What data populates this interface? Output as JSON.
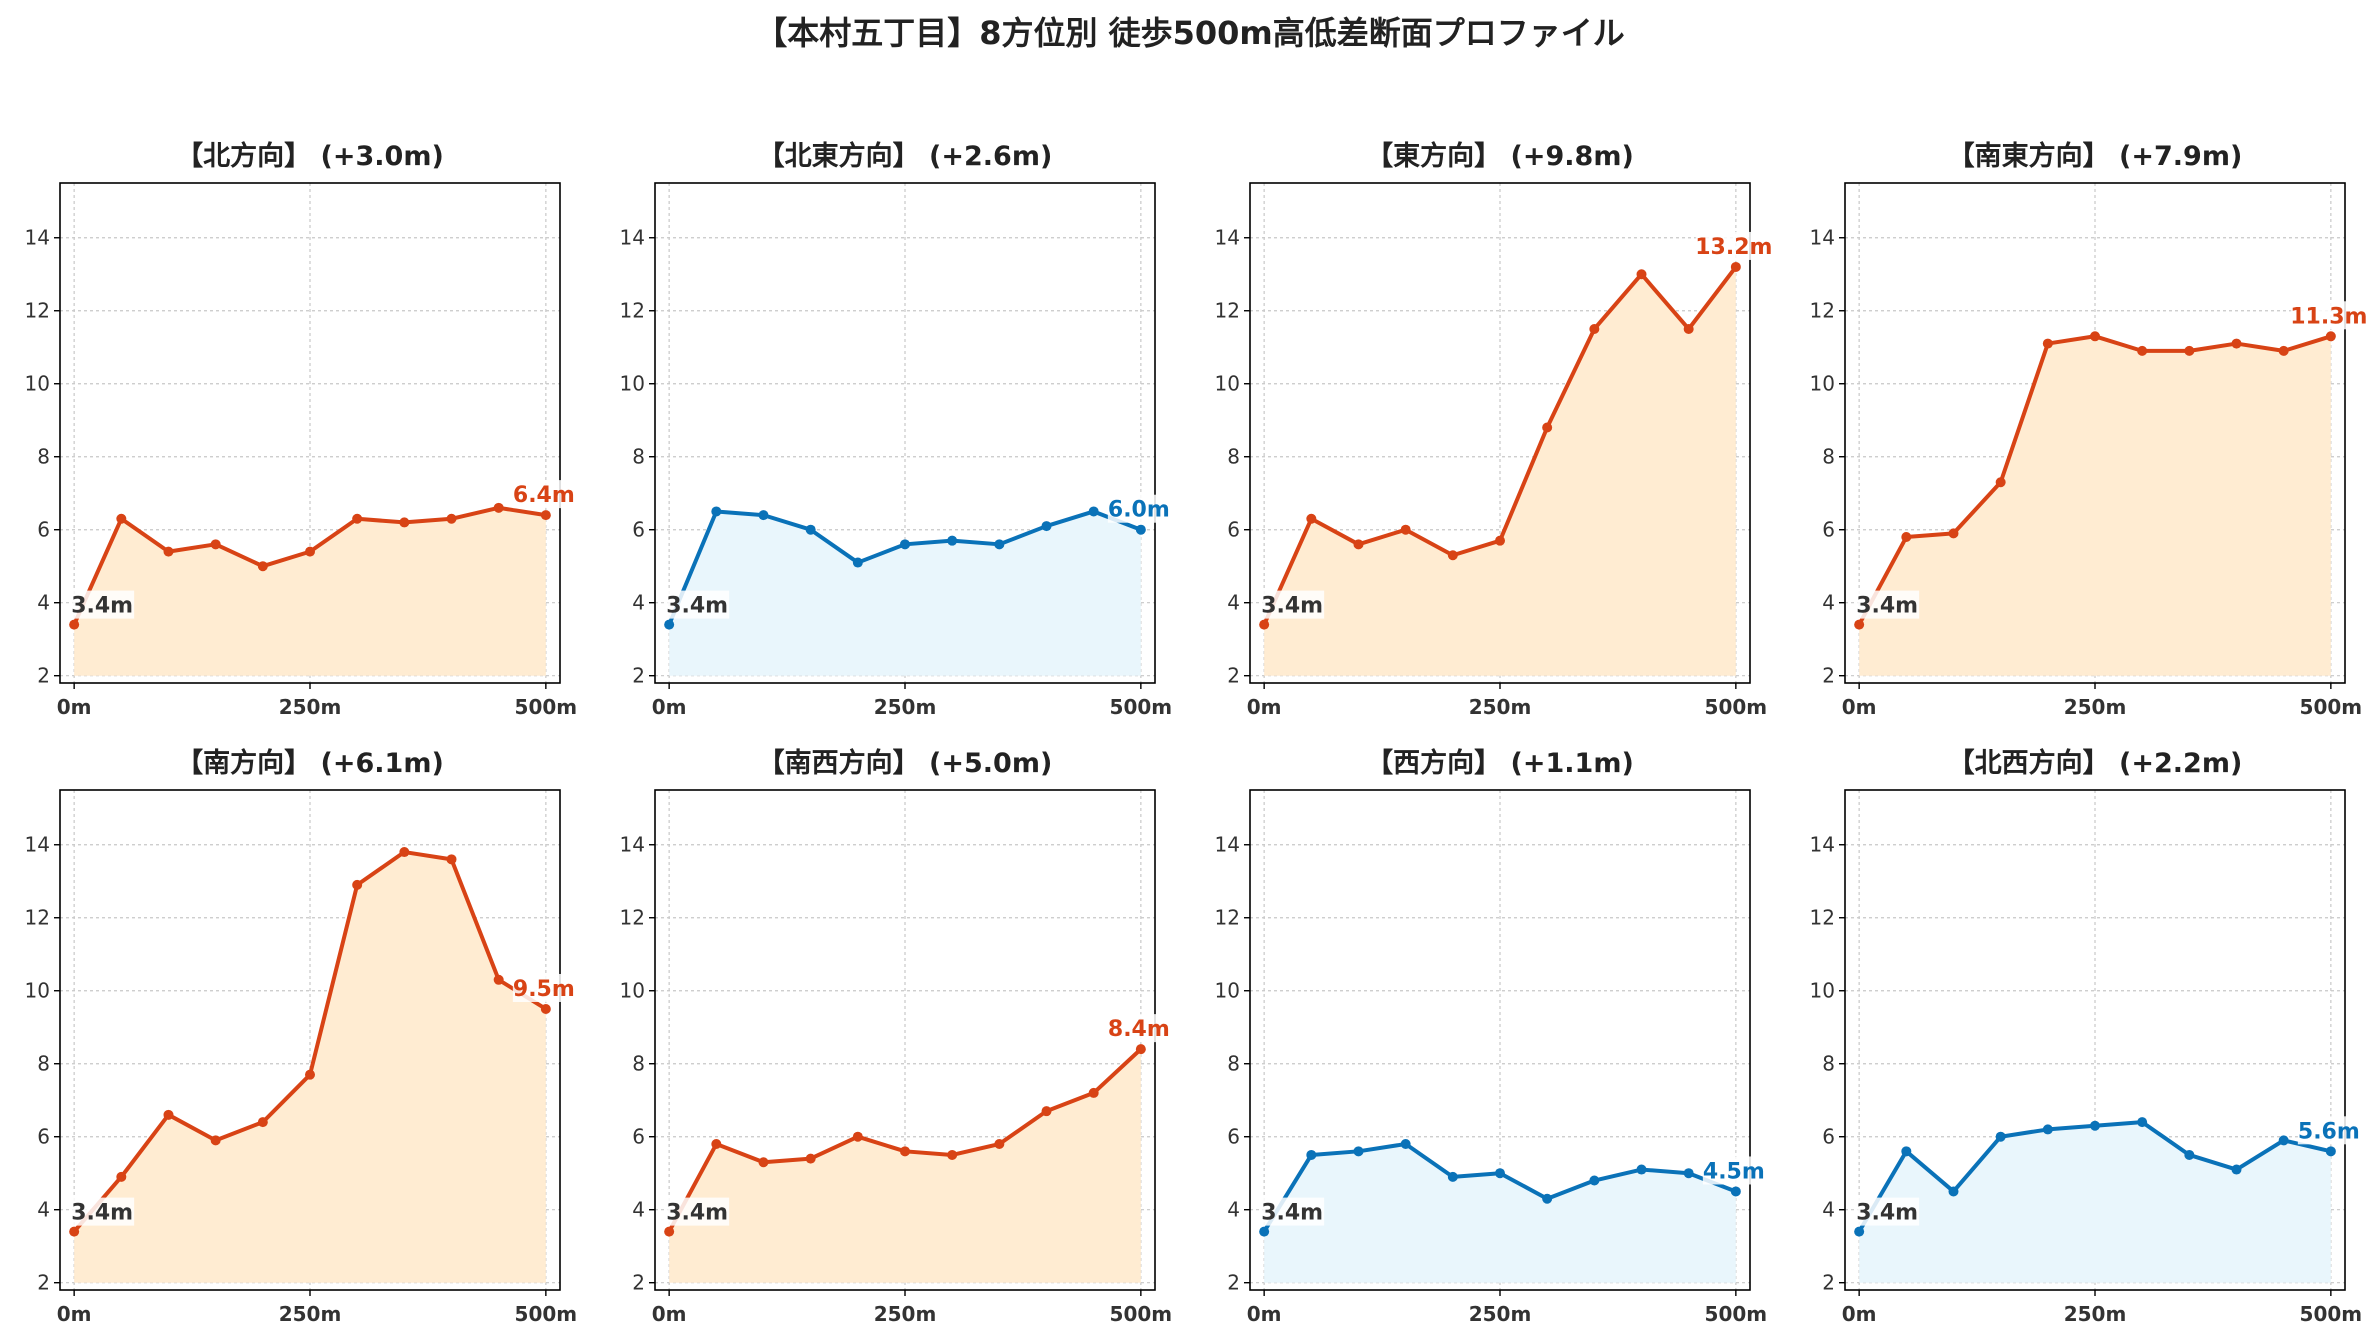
{
  "title": "【本村五丁目】8方位別 徒歩500m高低差断面プロファイル",
  "colors": {
    "up_line": "#d84315",
    "up_fill": "#ffecd2",
    "flat_line": "#0a72b8",
    "flat_fill": "#e9f6fc"
  },
  "chart_data": [
    {
      "type": "area",
      "title": "【北方向】 (+3.0m)",
      "color": "up",
      "x": [
        0,
        50,
        100,
        150,
        200,
        250,
        300,
        350,
        400,
        450,
        500
      ],
      "values": [
        3.4,
        6.3,
        5.4,
        5.6,
        5.0,
        5.4,
        6.3,
        6.2,
        6.3,
        6.6,
        6.4
      ],
      "start_label": "3.4m",
      "end_label": "6.4m",
      "ylim": [
        1.8,
        15.5
      ],
      "yticks": [
        "2",
        "4",
        "6",
        "8",
        "10",
        "12",
        "14"
      ],
      "xticks": [
        "0m",
        "250m",
        "500m"
      ],
      "grid": true
    },
    {
      "type": "area",
      "title": "【北東方向】 (+2.6m)",
      "color": "flat",
      "x": [
        0,
        50,
        100,
        150,
        200,
        250,
        300,
        350,
        400,
        450,
        500
      ],
      "values": [
        3.4,
        6.5,
        6.4,
        6.0,
        5.1,
        5.6,
        5.7,
        5.6,
        6.1,
        6.5,
        6.0
      ],
      "start_label": "3.4m",
      "end_label": "6.0m",
      "ylim": [
        1.8,
        15.5
      ],
      "yticks": [
        "2",
        "4",
        "6",
        "8",
        "10",
        "12",
        "14"
      ],
      "xticks": [
        "0m",
        "250m",
        "500m"
      ],
      "grid": true
    },
    {
      "type": "area",
      "title": "【東方向】 (+9.8m)",
      "color": "up",
      "x": [
        0,
        50,
        100,
        150,
        200,
        250,
        300,
        350,
        400,
        450,
        500
      ],
      "values": [
        3.4,
        6.3,
        5.6,
        6.0,
        5.3,
        5.7,
        8.8,
        11.5,
        13.0,
        11.5,
        13.2
      ],
      "start_label": "3.4m",
      "end_label": "13.2m",
      "ylim": [
        1.8,
        15.5
      ],
      "yticks": [
        "2",
        "4",
        "6",
        "8",
        "10",
        "12",
        "14"
      ],
      "xticks": [
        "0m",
        "250m",
        "500m"
      ],
      "grid": true
    },
    {
      "type": "area",
      "title": "【南東方向】 (+7.9m)",
      "color": "up",
      "x": [
        0,
        50,
        100,
        150,
        200,
        250,
        300,
        350,
        400,
        450,
        500
      ],
      "values": [
        3.4,
        5.8,
        5.9,
        7.3,
        11.1,
        11.3,
        10.9,
        10.9,
        11.1,
        10.9,
        11.3
      ],
      "start_label": "3.4m",
      "end_label": "11.3m",
      "ylim": [
        1.8,
        15.5
      ],
      "yticks": [
        "2",
        "4",
        "6",
        "8",
        "10",
        "12",
        "14"
      ],
      "xticks": [
        "0m",
        "250m",
        "500m"
      ],
      "grid": true
    },
    {
      "type": "area",
      "title": "【南方向】 (+6.1m)",
      "color": "up",
      "x": [
        0,
        50,
        100,
        150,
        200,
        250,
        300,
        350,
        400,
        450,
        500
      ],
      "values": [
        3.4,
        4.9,
        6.6,
        5.9,
        6.4,
        7.7,
        12.9,
        13.8,
        13.6,
        10.3,
        9.5
      ],
      "start_label": "3.4m",
      "end_label": "9.5m",
      "ylim": [
        1.8,
        15.5
      ],
      "yticks": [
        "2",
        "4",
        "6",
        "8",
        "10",
        "12",
        "14"
      ],
      "xticks": [
        "0m",
        "250m",
        "500m"
      ],
      "grid": true
    },
    {
      "type": "area",
      "title": "【南西方向】 (+5.0m)",
      "color": "up",
      "x": [
        0,
        50,
        100,
        150,
        200,
        250,
        300,
        350,
        400,
        450,
        500
      ],
      "values": [
        3.4,
        5.8,
        5.3,
        5.4,
        6.0,
        5.6,
        5.5,
        5.8,
        6.7,
        7.2,
        8.4
      ],
      "start_label": "3.4m",
      "end_label": "8.4m",
      "ylim": [
        1.8,
        15.5
      ],
      "yticks": [
        "2",
        "4",
        "6",
        "8",
        "10",
        "12",
        "14"
      ],
      "xticks": [
        "0m",
        "250m",
        "500m"
      ],
      "grid": true
    },
    {
      "type": "area",
      "title": "【西方向】 (+1.1m)",
      "color": "flat",
      "x": [
        0,
        50,
        100,
        150,
        200,
        250,
        300,
        350,
        400,
        450,
        500
      ],
      "values": [
        3.4,
        5.5,
        5.6,
        5.8,
        4.9,
        5.0,
        4.3,
        4.8,
        5.1,
        5.0,
        4.5
      ],
      "start_label": "3.4m",
      "end_label": "4.5m",
      "ylim": [
        1.8,
        15.5
      ],
      "yticks": [
        "2",
        "4",
        "6",
        "8",
        "10",
        "12",
        "14"
      ],
      "xticks": [
        "0m",
        "250m",
        "500m"
      ],
      "grid": true
    },
    {
      "type": "area",
      "title": "【北西方向】 (+2.2m)",
      "color": "flat",
      "x": [
        0,
        50,
        100,
        150,
        200,
        250,
        300,
        350,
        400,
        450,
        500
      ],
      "values": [
        3.4,
        5.6,
        4.5,
        6.0,
        6.2,
        6.3,
        6.4,
        5.5,
        5.1,
        5.9,
        5.6
      ],
      "start_label": "3.4m",
      "end_label": "5.6m",
      "ylim": [
        1.8,
        15.5
      ],
      "yticks": [
        "2",
        "4",
        "6",
        "8",
        "10",
        "12",
        "14"
      ],
      "xticks": [
        "0m",
        "250m",
        "500m"
      ],
      "grid": true
    }
  ]
}
